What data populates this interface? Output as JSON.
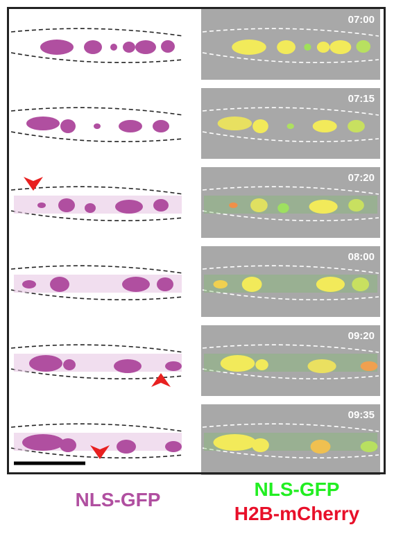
{
  "panels": [
    {
      "time": "07:00"
    },
    {
      "time": "07:15"
    },
    {
      "time": "07:20"
    },
    {
      "time": "08:00"
    },
    {
      "time": "09:20"
    },
    {
      "time": "09:35"
    }
  ],
  "labels": {
    "left": "NLS-GFP",
    "right_green": "NLS-GFP",
    "right_red": "H2B-mCherry"
  }
}
